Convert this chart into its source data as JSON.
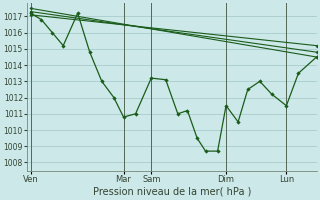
{
  "title": "",
  "xlabel": "Pression niveau de la mer( hPa )",
  "ylabel": "",
  "bg_color": "#cce8e8",
  "grid_color": "#aacccc",
  "line_color": "#1a5c1a",
  "ylim": [
    1007.5,
    1017.8
  ],
  "yticks": [
    1008,
    1009,
    1010,
    1011,
    1012,
    1013,
    1014,
    1015,
    1016,
    1017
  ],
  "xlim": [
    0,
    24
  ],
  "day_labels": [
    "Ven",
    "Mar",
    "Sam",
    "Dim",
    "Lun"
  ],
  "day_positions": [
    0.3,
    8.0,
    10.3,
    16.5,
    21.5
  ],
  "vline_positions": [
    0.3,
    8.0,
    10.3,
    16.5,
    21.5
  ],
  "series_straight1": {
    "x": [
      0.3,
      24.0
    ],
    "y": [
      1017.5,
      1014.5
    ]
  },
  "series_straight2": {
    "x": [
      0.3,
      24.0
    ],
    "y": [
      1017.3,
      1014.8
    ]
  },
  "series_straight3": {
    "x": [
      0.3,
      24.0
    ],
    "y": [
      1017.1,
      1015.2
    ]
  },
  "series_main_x": [
    0.3,
    1.2,
    2.1,
    3.0,
    4.2,
    5.2,
    6.2,
    7.2,
    8.0,
    9.0,
    10.3,
    11.5,
    12.5,
    13.3,
    14.1,
    14.8,
    15.8,
    16.5,
    17.5,
    18.3,
    19.3,
    20.3,
    21.5,
    22.5,
    24.0
  ],
  "series_main_y": [
    1017.2,
    1016.8,
    1016.0,
    1015.2,
    1017.2,
    1014.8,
    1013.0,
    1012.0,
    1010.8,
    1011.0,
    1013.2,
    1013.1,
    1011.0,
    1011.2,
    1009.5,
    1008.7,
    1008.7,
    1011.5,
    1010.5,
    1012.5,
    1013.0,
    1012.2,
    1011.5,
    1013.5,
    1014.5
  ]
}
